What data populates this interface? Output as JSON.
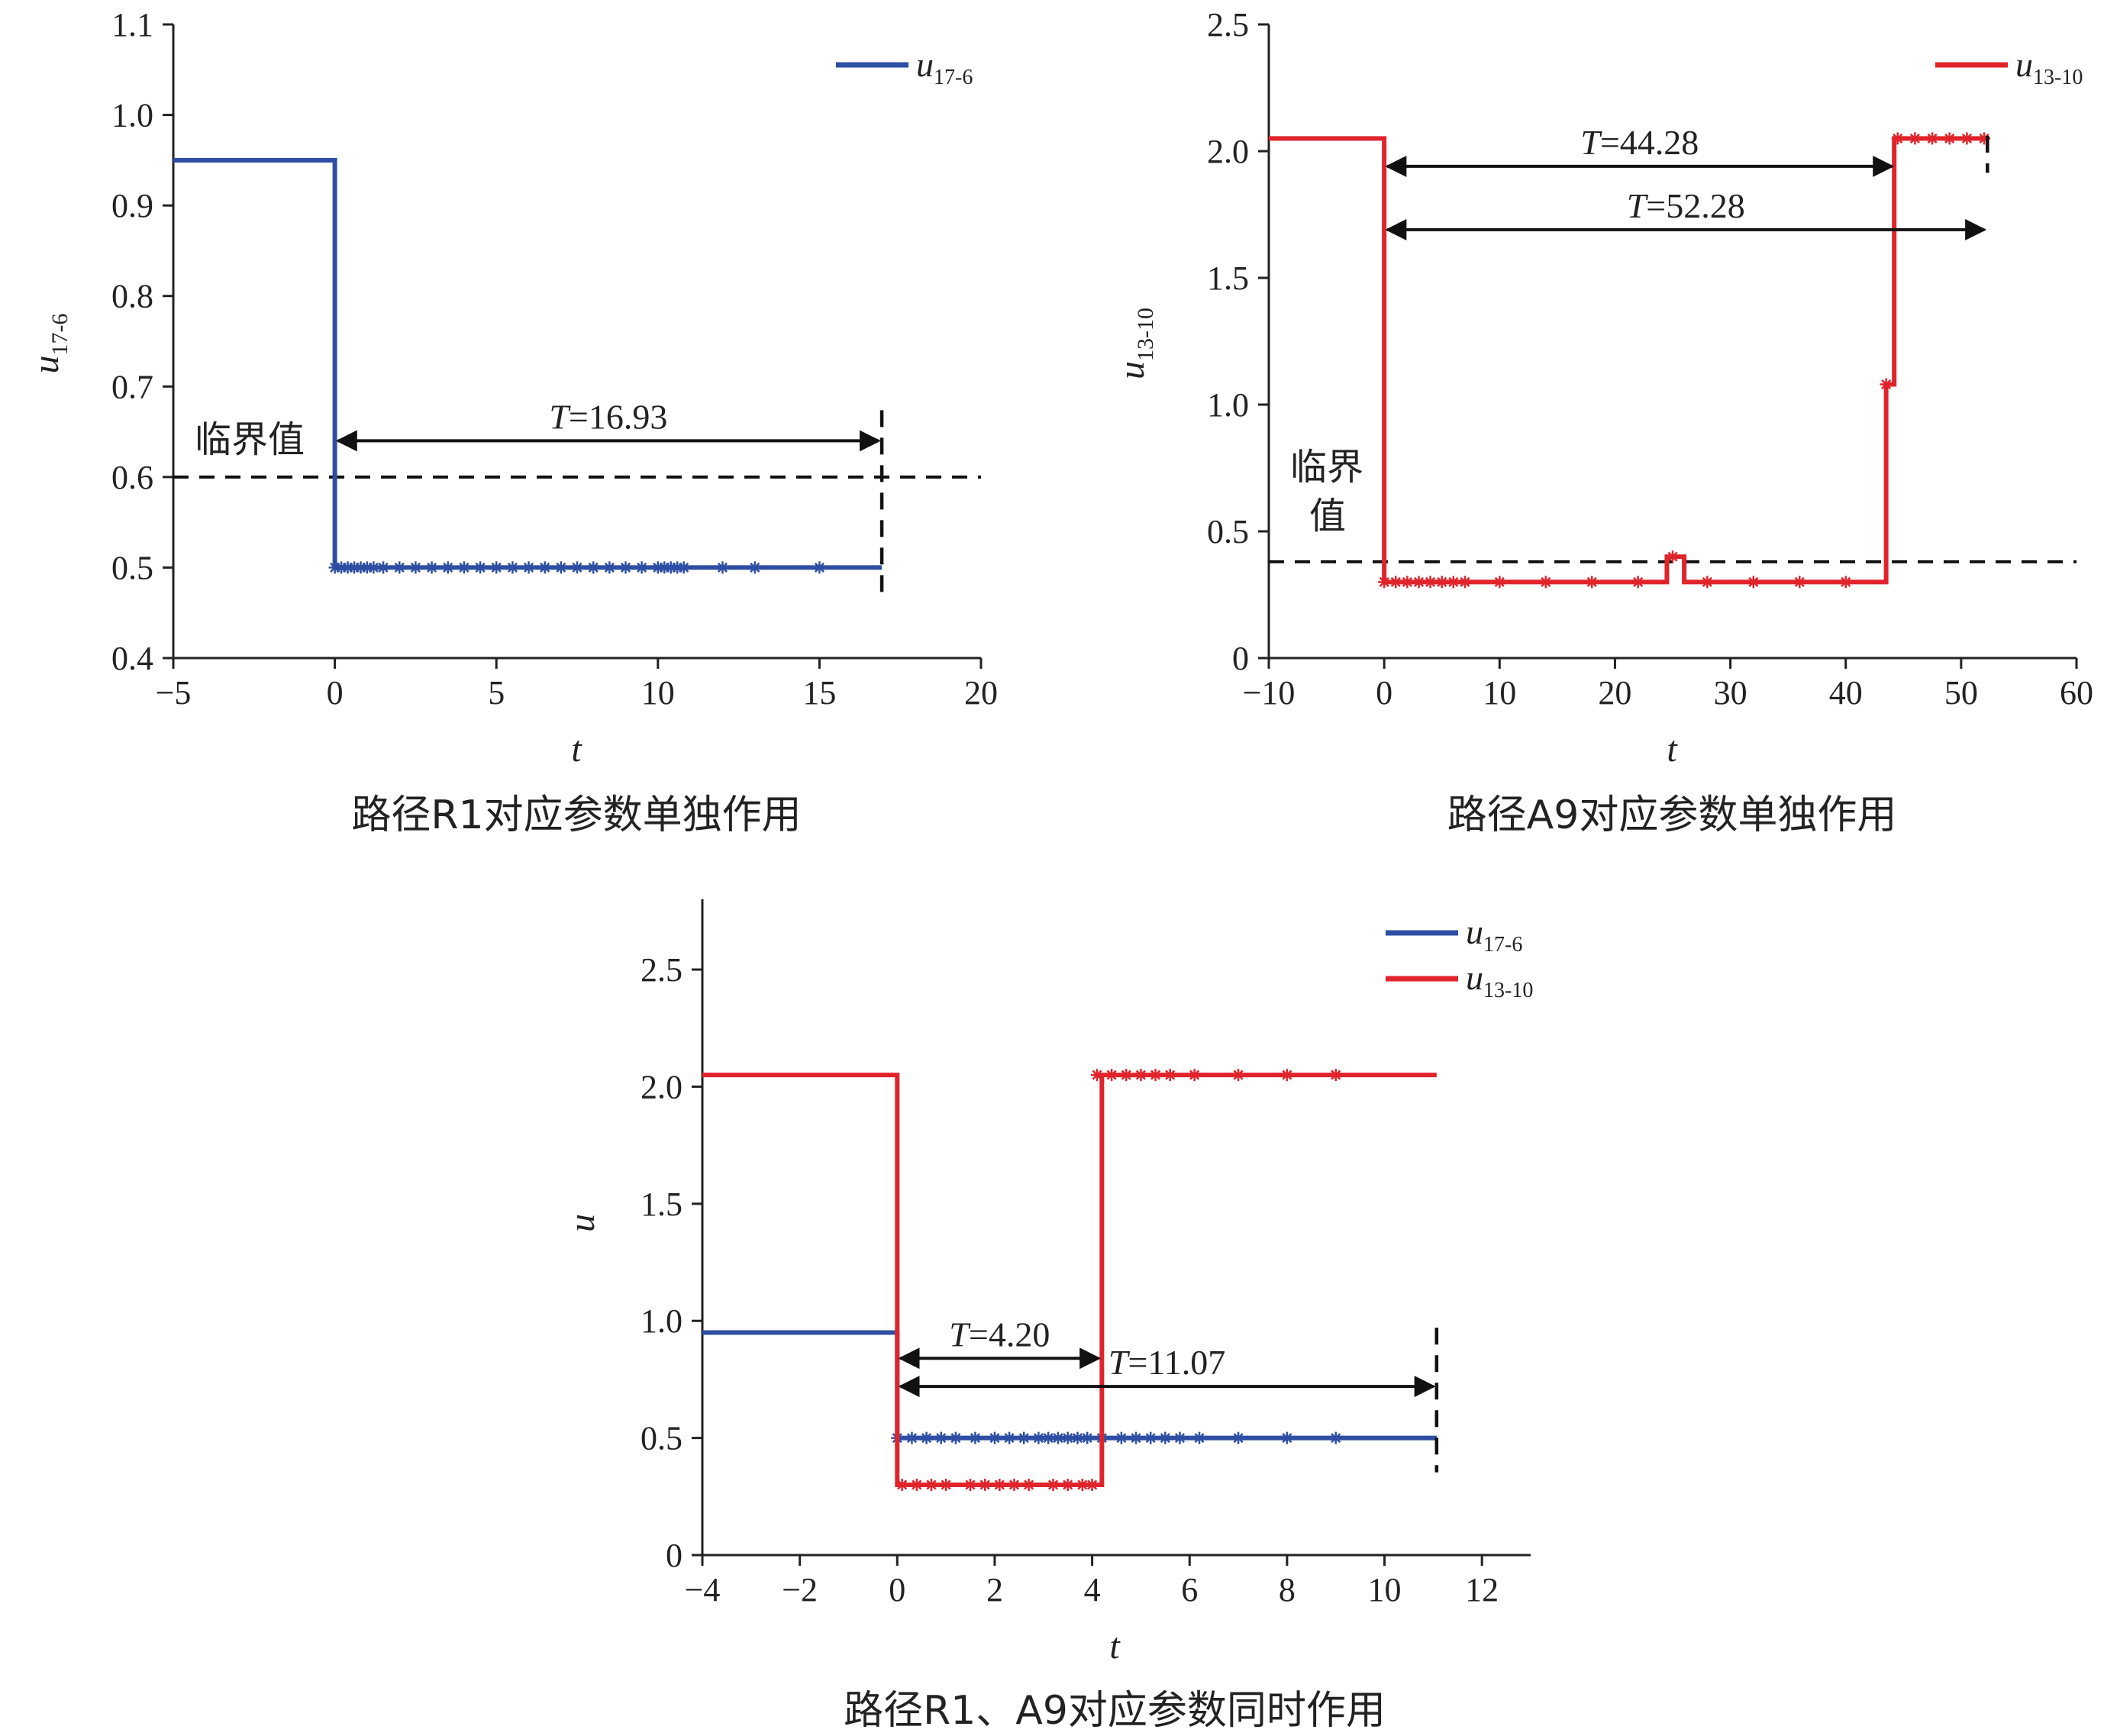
{
  "chart_data": [
    {
      "type": "line",
      "caption": "路径R1对应参数单独作用",
      "xlabel": "t",
      "ylabel": "u",
      "ylabel_sub": "17-6",
      "xlim": [
        -5,
        20
      ],
      "ylim": [
        0.4,
        1.1
      ],
      "xticks": [
        -5,
        0,
        5,
        10,
        15,
        20
      ],
      "xtick_labels": [
        "−5",
        "0",
        "5",
        "10",
        "15",
        "20"
      ],
      "yticks": [
        0.4,
        0.5,
        0.6,
        0.7,
        0.8,
        0.9,
        1.0,
        1.1
      ],
      "ytick_labels": [
        "0.4",
        "0.5",
        "0.6",
        "0.7",
        "0.8",
        "0.9",
        "1.0",
        "1.1"
      ],
      "legend_position": "top-right",
      "series": [
        {
          "name": "u",
          "name_sub": "17-6",
          "color": "#2e4ea3",
          "x": [
            -5,
            0,
            0,
            16.93
          ],
          "y": [
            0.95,
            0.95,
            0.5,
            0.5
          ],
          "markers_x": [
            0,
            0.2,
            0.4,
            0.6,
            0.8,
            1.0,
            1.2,
            1.5,
            2.0,
            2.5,
            3.0,
            3.5,
            4.0,
            4.5,
            5.0,
            5.5,
            6.0,
            6.5,
            7.0,
            7.5,
            8.0,
            8.5,
            9.0,
            9.5,
            10.0,
            10.2,
            10.4,
            10.6,
            10.8,
            12.0,
            13.0,
            15.0
          ],
          "markers_y": 0.5
        }
      ],
      "threshold": {
        "label": "临界值",
        "value": 0.6
      },
      "annotations": [
        {
          "prefix": "T",
          "text": "=16.93",
          "x0": 0,
          "x1": 16.93,
          "y": 0.64
        }
      ],
      "end_marker_x": 16.93
    },
    {
      "type": "line",
      "caption": "路径A9对应参数单独作用",
      "xlabel": "t",
      "ylabel": "u",
      "ylabel_sub": "13-10",
      "xlim": [
        -10,
        60
      ],
      "ylim": [
        0,
        2.5
      ],
      "xticks": [
        -10,
        0,
        10,
        20,
        30,
        40,
        50,
        60
      ],
      "xtick_labels": [
        "−10",
        "0",
        "10",
        "20",
        "30",
        "40",
        "50",
        "60"
      ],
      "yticks": [
        0,
        0.5,
        1.0,
        1.5,
        2.0,
        2.5
      ],
      "ytick_labels": [
        "0",
        "0.5",
        "1.0",
        "1.5",
        "2.0",
        "2.5"
      ],
      "legend_position": "top-right",
      "series": [
        {
          "name": "u",
          "name_sub": "13-10",
          "color": "#e0242b",
          "x": [
            -10,
            0,
            0,
            24.5,
            24.5,
            26,
            26,
            43.5,
            43.5,
            44.2,
            44.2,
            52.28
          ],
          "y": [
            2.05,
            2.05,
            0.3,
            0.3,
            0.4,
            0.4,
            0.3,
            0.3,
            1.08,
            1.08,
            2.05,
            2.05
          ],
          "markers": [
            [
              0,
              0.3
            ],
            [
              1,
              0.3
            ],
            [
              2,
              0.3
            ],
            [
              3,
              0.3
            ],
            [
              4,
              0.3
            ],
            [
              5,
              0.3
            ],
            [
              6,
              0.3
            ],
            [
              7,
              0.3
            ],
            [
              10,
              0.3
            ],
            [
              14,
              0.3
            ],
            [
              18,
              0.3
            ],
            [
              22,
              0.3
            ],
            [
              25,
              0.4
            ],
            [
              28,
              0.3
            ],
            [
              32,
              0.3
            ],
            [
              36,
              0.3
            ],
            [
              40,
              0.3
            ],
            [
              43.5,
              1.08
            ],
            [
              44.5,
              2.05
            ],
            [
              46,
              2.05
            ],
            [
              47.5,
              2.05
            ],
            [
              49,
              2.05
            ],
            [
              50.5,
              2.05
            ],
            [
              52,
              2.05
            ]
          ]
        }
      ],
      "threshold": {
        "label_line1": "临界",
        "label_line2": "值",
        "value": 0.38
      },
      "annotations": [
        {
          "prefix": "T",
          "text": "=44.28",
          "x0": 0,
          "x1": 44.28,
          "y": 1.94
        },
        {
          "prefix": "T",
          "text": "=52.28",
          "x0": 0,
          "x1": 52.28,
          "y": 1.69
        }
      ],
      "end_marker_x": 52.28
    },
    {
      "type": "line",
      "caption": "路径R1、A9对应参数同时作用",
      "xlabel": "t",
      "ylabel": "u",
      "xlim": [
        -4,
        13
      ],
      "ylim": [
        0,
        2.8
      ],
      "xticks": [
        -4,
        -2,
        0,
        2,
        4,
        6,
        8,
        10,
        12
      ],
      "xtick_labels": [
        "−4",
        "−2",
        "0",
        "2",
        "4",
        "6",
        "8",
        "10",
        "12"
      ],
      "yticks": [
        0,
        0.5,
        1.0,
        1.5,
        2.0,
        2.5
      ],
      "ytick_labels": [
        "0",
        "0.5",
        "1.0",
        "1.5",
        "2.0",
        "2.5"
      ],
      "legend_position": "top-right",
      "series": [
        {
          "name": "u",
          "name_sub": "17-6",
          "color": "#2e4ea3",
          "x": [
            -4,
            0,
            0,
            11.07
          ],
          "y": [
            0.95,
            0.95,
            0.5,
            0.5
          ],
          "markers_x": [
            0,
            0.3,
            0.6,
            0.9,
            1.2,
            1.6,
            2.0,
            2.3,
            2.6,
            2.9,
            3.1,
            3.3,
            3.5,
            3.7,
            3.9,
            4.2,
            4.6,
            4.9,
            5.2,
            5.5,
            5.8,
            6.2,
            7.0,
            8.0,
            9.0
          ],
          "markers_y": 0.5
        },
        {
          "name": "u",
          "name_sub": "13-10",
          "color": "#e0242b",
          "x": [
            -4,
            0,
            0,
            4.2,
            4.2,
            11.07
          ],
          "y": [
            2.05,
            2.05,
            0.3,
            0.3,
            2.05,
            2.05
          ],
          "markers": [
            [
              0.1,
              0.3
            ],
            [
              0.4,
              0.3
            ],
            [
              0.7,
              0.3
            ],
            [
              1.0,
              0.3
            ],
            [
              1.5,
              0.3
            ],
            [
              1.8,
              0.3
            ],
            [
              2.1,
              0.3
            ],
            [
              2.4,
              0.3
            ],
            [
              2.7,
              0.3
            ],
            [
              3.2,
              0.3
            ],
            [
              3.5,
              0.3
            ],
            [
              3.8,
              0.3
            ],
            [
              4.0,
              0.3
            ],
            [
              4.1,
              2.05
            ],
            [
              4.4,
              2.05
            ],
            [
              4.7,
              2.05
            ],
            [
              5.0,
              2.05
            ],
            [
              5.3,
              2.05
            ],
            [
              5.6,
              2.05
            ],
            [
              6.1,
              2.05
            ],
            [
              7.0,
              2.05
            ],
            [
              8.0,
              2.05
            ],
            [
              9.0,
              2.05
            ]
          ]
        }
      ],
      "annotations": [
        {
          "prefix": "T",
          "text": "=4.20",
          "x0": 0,
          "x1": 4.2,
          "y": 0.84
        },
        {
          "prefix": "T",
          "text": "=11.07",
          "x0": 0,
          "x1": 11.07,
          "y": 0.72
        }
      ],
      "end_marker_x": 11.07
    }
  ]
}
